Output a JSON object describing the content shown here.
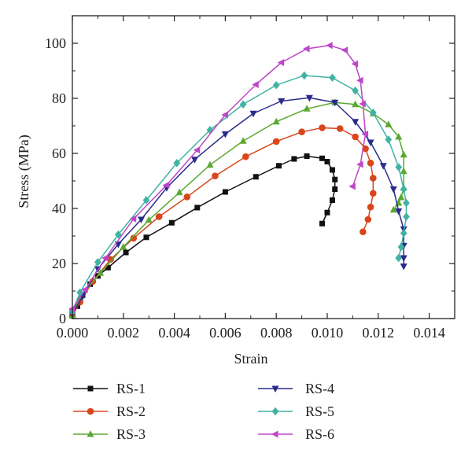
{
  "chart_data": {
    "type": "line",
    "title": "",
    "xlabel": "Strain",
    "ylabel": "Stress (MPa)",
    "xlim": [
      0,
      0.015
    ],
    "ylim": [
      0,
      110
    ],
    "xticks": [
      "0.000",
      "0.002",
      "0.004",
      "0.006",
      "0.008",
      "0.010",
      "0.012",
      "0.014"
    ],
    "yticks": [
      "0",
      "20",
      "40",
      "60",
      "80",
      "100"
    ],
    "grid": false,
    "legend_position": "bottom",
    "series": [
      {
        "name": "RS-1",
        "color": "#111111",
        "marker": "square",
        "points": [
          [
            0.0,
            2.5
          ],
          [
            0.0002,
            4.5
          ],
          [
            0.0004,
            8.5
          ],
          [
            0.0007,
            12.5
          ],
          [
            0.001,
            15.5
          ],
          [
            0.0014,
            18.5
          ],
          [
            0.0021,
            24
          ],
          [
            0.0029,
            29.5
          ],
          [
            0.0039,
            34.8
          ],
          [
            0.0049,
            40.3
          ],
          [
            0.006,
            46
          ],
          [
            0.0072,
            51.5
          ],
          [
            0.0081,
            55.5
          ],
          [
            0.0087,
            58
          ],
          [
            0.0092,
            59
          ],
          [
            0.0098,
            58.2
          ],
          [
            0.01,
            57
          ],
          [
            0.0102,
            54
          ],
          [
            0.0103,
            50.5
          ],
          [
            0.0103,
            47
          ],
          [
            0.0102,
            43
          ],
          [
            0.01,
            38.5
          ],
          [
            0.0098,
            34.5
          ]
        ]
      },
      {
        "name": "RS-2",
        "color": "#d9461c",
        "marker": "circle",
        "points": [
          [
            0.0,
            1
          ],
          [
            0.0003,
            6
          ],
          [
            0.0008,
            13.5
          ],
          [
            0.0015,
            21.5
          ],
          [
            0.0024,
            29.2
          ],
          [
            0.0034,
            37
          ],
          [
            0.0045,
            44.2
          ],
          [
            0.0056,
            51.8
          ],
          [
            0.0068,
            58.8
          ],
          [
            0.008,
            64.3
          ],
          [
            0.009,
            67.8
          ],
          [
            0.0098,
            69.3
          ],
          [
            0.0105,
            69
          ],
          [
            0.0111,
            66
          ],
          [
            0.0115,
            61.7
          ],
          [
            0.0117,
            56.5
          ],
          [
            0.0118,
            51
          ],
          [
            0.0118,
            45.5
          ],
          [
            0.0117,
            40.5
          ],
          [
            0.0116,
            36
          ],
          [
            0.0114,
            31.5
          ]
        ]
      },
      {
        "name": "RS-3",
        "color": "#5aa831",
        "marker": "triangle-up",
        "points": [
          [
            0.0,
            1
          ],
          [
            0.0003,
            8
          ],
          [
            0.0011,
            16.5
          ],
          [
            0.002,
            26
          ],
          [
            0.003,
            35.8
          ],
          [
            0.0042,
            45.8
          ],
          [
            0.0054,
            55.8
          ],
          [
            0.0067,
            64.5
          ],
          [
            0.008,
            71.5
          ],
          [
            0.0092,
            76.2
          ],
          [
            0.0103,
            78.5
          ],
          [
            0.0111,
            77.8
          ],
          [
            0.0118,
            74.5
          ],
          [
            0.0124,
            70.5
          ],
          [
            0.0128,
            66
          ],
          [
            0.013,
            59.5
          ],
          [
            0.013,
            53.5
          ],
          [
            0.013,
            47.5
          ],
          [
            0.0129,
            44
          ],
          [
            0.0128,
            42
          ],
          [
            0.0126,
            39.5
          ]
        ]
      },
      {
        "name": "RS-4",
        "color": "#2a2a8c",
        "marker": "triangle-down",
        "points": [
          [
            0.0,
            1.5
          ],
          [
            0.0004,
            8
          ],
          [
            0.001,
            18
          ],
          [
            0.0018,
            27
          ],
          [
            0.0027,
            36
          ],
          [
            0.0037,
            47.5
          ],
          [
            0.0048,
            57.8
          ],
          [
            0.006,
            67
          ],
          [
            0.0071,
            74.5
          ],
          [
            0.0082,
            79
          ],
          [
            0.0093,
            80.2
          ],
          [
            0.0103,
            78.5
          ],
          [
            0.0111,
            71.5
          ],
          [
            0.0117,
            64
          ],
          [
            0.0122,
            55.5
          ],
          [
            0.0126,
            47
          ],
          [
            0.0128,
            39
          ],
          [
            0.013,
            32.5
          ],
          [
            0.013,
            26.5
          ],
          [
            0.013,
            22
          ],
          [
            0.013,
            19
          ]
        ]
      },
      {
        "name": "RS-5",
        "color": "#41b3a3",
        "marker": "diamond",
        "points": [
          [
            0.0,
            2.5
          ],
          [
            0.0003,
            9.5
          ],
          [
            0.001,
            20.5
          ],
          [
            0.0018,
            30.5
          ],
          [
            0.0029,
            43
          ],
          [
            0.0041,
            56.5
          ],
          [
            0.0054,
            68.5
          ],
          [
            0.0067,
            77.8
          ],
          [
            0.008,
            84.8
          ],
          [
            0.0091,
            88.3
          ],
          [
            0.0102,
            87.5
          ],
          [
            0.0111,
            82.8
          ],
          [
            0.0118,
            74.8
          ],
          [
            0.0124,
            65
          ],
          [
            0.0128,
            55
          ],
          [
            0.013,
            47
          ],
          [
            0.0131,
            42
          ],
          [
            0.0131,
            37
          ],
          [
            0.013,
            31
          ],
          [
            0.0129,
            26
          ],
          [
            0.0128,
            22
          ]
        ]
      },
      {
        "name": "RS-6",
        "color": "#bf46c9",
        "marker": "triangle-left",
        "points": [
          [
            0.0,
            3.5
          ],
          [
            0.0005,
            10.5
          ],
          [
            0.0013,
            22
          ],
          [
            0.0024,
            36.2
          ],
          [
            0.0037,
            48.5
          ],
          [
            0.0049,
            61.2
          ],
          [
            0.006,
            74
          ],
          [
            0.0072,
            85
          ],
          [
            0.0082,
            93
          ],
          [
            0.0092,
            98
          ],
          [
            0.0101,
            99.2
          ],
          [
            0.0107,
            97.5
          ],
          [
            0.0111,
            92.5
          ],
          [
            0.0113,
            86.5
          ],
          [
            0.0114,
            78
          ],
          [
            0.0115,
            67
          ],
          [
            0.0113,
            56
          ],
          [
            0.011,
            48
          ]
        ]
      }
    ]
  }
}
